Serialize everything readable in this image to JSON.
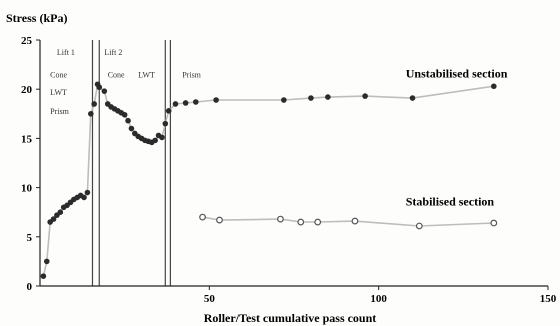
{
  "chart_data": {
    "type": "scatter",
    "ylabel": "Stress (kPa)",
    "xlabel": "Roller/Test cumulative pass count",
    "xlim": [
      0,
      150
    ],
    "ylim": [
      0,
      25
    ],
    "xticks": [
      "50",
      "100",
      "150"
    ],
    "yticks": [
      "0",
      "5",
      "10",
      "15",
      "20",
      "25"
    ],
    "grid": false,
    "legend": "none",
    "dividers_x": [
      15.5,
      17.5,
      37,
      38.5
    ],
    "region_labels": [
      {
        "text": "Lift 1",
        "x": 5,
        "y": 23.5
      },
      {
        "text": "Lift 2",
        "x": 19,
        "y": 23.5
      },
      {
        "text": "Cone",
        "x": 3,
        "y": 21.2
      },
      {
        "text": "Cone",
        "x": 20,
        "y": 21.2
      },
      {
        "text": "LWT",
        "x": 3,
        "y": 19.4
      },
      {
        "text": "LWT",
        "x": 29,
        "y": 21.2
      },
      {
        "text": "Prism",
        "x": 3,
        "y": 17.5
      },
      {
        "text": "Prism",
        "x": 42,
        "y": 21.2
      }
    ],
    "annotations": [
      {
        "text": "Unstabilised section",
        "x": 108,
        "y": 21.2
      },
      {
        "text": "Stabilised section",
        "x": 108,
        "y": 8.2
      }
    ],
    "series": [
      {
        "marker": "filled",
        "color": "#2b2b2b",
        "points": [
          [
            1,
            1
          ],
          [
            2,
            2.5
          ],
          [
            3,
            6.5
          ],
          [
            4,
            6.8
          ],
          [
            5,
            7.2
          ],
          [
            6,
            7.5
          ],
          [
            7,
            8
          ],
          [
            8,
            8.2
          ],
          [
            9,
            8.5
          ],
          [
            10,
            8.8
          ],
          [
            11,
            9
          ],
          [
            12,
            9.2
          ],
          [
            13,
            9
          ],
          [
            14,
            9.5
          ],
          [
            15,
            17.5
          ],
          [
            16,
            18.5
          ],
          [
            17,
            20.5
          ],
          [
            17.5,
            20.2
          ],
          [
            19,
            19.8
          ],
          [
            20,
            18.5
          ],
          [
            21,
            18.2
          ],
          [
            22,
            18
          ],
          [
            23,
            17.8
          ],
          [
            24,
            17.6
          ],
          [
            25,
            17.4
          ],
          [
            26,
            16.8
          ],
          [
            27,
            16
          ],
          [
            28,
            15.5
          ],
          [
            29,
            15.2
          ],
          [
            30,
            15
          ],
          [
            31,
            14.8
          ],
          [
            32,
            14.7
          ],
          [
            33,
            14.6
          ],
          [
            34,
            14.8
          ],
          [
            35,
            15.3
          ],
          [
            36,
            15.1
          ],
          [
            37,
            16.5
          ],
          [
            38,
            17.8
          ],
          [
            40,
            18.5
          ],
          [
            43,
            18.6
          ],
          [
            46,
            18.7
          ],
          [
            52,
            18.9
          ],
          [
            72,
            18.9
          ],
          [
            80,
            19.1
          ],
          [
            85,
            19.2
          ],
          [
            96,
            19.3
          ],
          [
            110,
            19.1
          ],
          [
            134,
            20.3
          ]
        ]
      },
      {
        "marker": "open",
        "color": "#555555",
        "points": [
          [
            48,
            7
          ],
          [
            53,
            6.7
          ],
          [
            71,
            6.8
          ],
          [
            77,
            6.5
          ],
          [
            82,
            6.5
          ],
          [
            93,
            6.6
          ],
          [
            112,
            6.1
          ],
          [
            134,
            6.4
          ]
        ]
      }
    ]
  }
}
